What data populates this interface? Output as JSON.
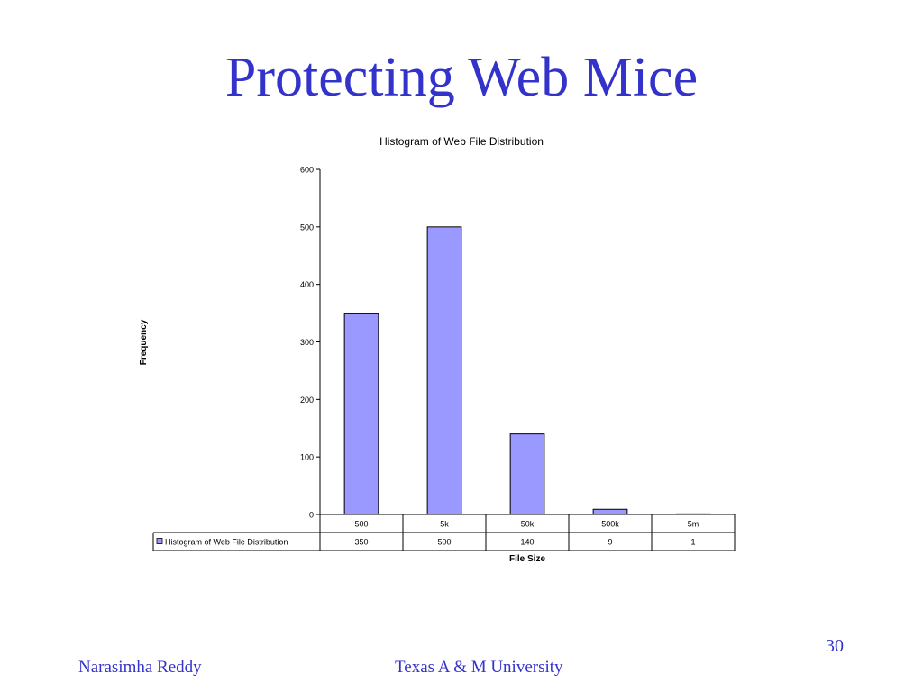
{
  "slide": {
    "title": "Protecting Web Mice",
    "page_number": "30",
    "footer_left": "Narasimha Reddy",
    "footer_center": "Texas A & M University"
  },
  "colors": {
    "title": "#3333cc",
    "bar_fill": "#9999ff",
    "bar_stroke": "#000000"
  },
  "chart_data": {
    "type": "bar",
    "title": "Histogram of Web File Distribution",
    "xlabel": "File Size",
    "ylabel": "Frequency",
    "categories": [
      "500",
      "5k",
      "50k",
      "500k",
      "5m"
    ],
    "series": [
      {
        "name": "Histogram of Web File Distribution",
        "values": [
          350,
          500,
          140,
          9,
          1
        ]
      }
    ],
    "ylim": [
      0,
      600
    ],
    "yticks": [
      0,
      100,
      200,
      300,
      400,
      500,
      600
    ],
    "data_table": true,
    "grid": false
  }
}
